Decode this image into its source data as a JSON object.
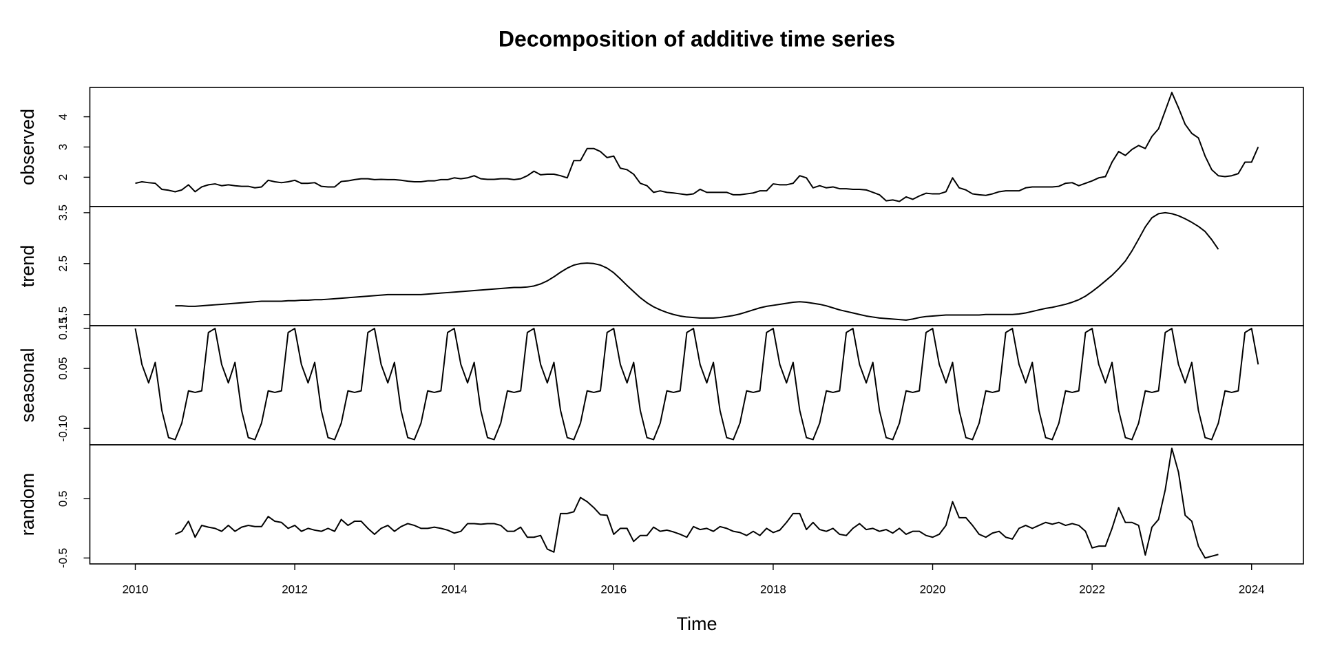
{
  "chart_data": {
    "type": "line",
    "title": "Decomposition of additive time series",
    "xlabel": "Time",
    "xlim": [
      2009.43,
      2024.65
    ],
    "xticks": [
      2010,
      2012,
      2014,
      2016,
      2018,
      2020,
      2022,
      2024
    ],
    "color": "#000000",
    "x": [
      2010,
      2010.083,
      2010.167,
      2010.25,
      2010.333,
      2010.417,
      2010.5,
      2010.583,
      2010.667,
      2010.75,
      2010.833,
      2010.917,
      2011,
      2011.083,
      2011.167,
      2011.25,
      2011.333,
      2011.417,
      2011.5,
      2011.583,
      2011.667,
      2011.75,
      2011.833,
      2011.917,
      2012,
      2012.083,
      2012.167,
      2012.25,
      2012.333,
      2012.417,
      2012.5,
      2012.583,
      2012.667,
      2012.75,
      2012.833,
      2012.917,
      2013,
      2013.083,
      2013.167,
      2013.25,
      2013.333,
      2013.417,
      2013.5,
      2013.583,
      2013.667,
      2013.75,
      2013.833,
      2013.917,
      2014,
      2014.083,
      2014.167,
      2014.25,
      2014.333,
      2014.417,
      2014.5,
      2014.583,
      2014.667,
      2014.75,
      2014.833,
      2014.917,
      2015,
      2015.083,
      2015.167,
      2015.25,
      2015.333,
      2015.417,
      2015.5,
      2015.583,
      2015.667,
      2015.75,
      2015.833,
      2015.917,
      2016,
      2016.083,
      2016.167,
      2016.25,
      2016.333,
      2016.417,
      2016.5,
      2016.583,
      2016.667,
      2016.75,
      2016.833,
      2016.917,
      2017,
      2017.083,
      2017.167,
      2017.25,
      2017.333,
      2017.417,
      2017.5,
      2017.583,
      2017.667,
      2017.75,
      2017.833,
      2017.917,
      2018,
      2018.083,
      2018.167,
      2018.25,
      2018.333,
      2018.417,
      2018.5,
      2018.583,
      2018.667,
      2018.75,
      2018.833,
      2018.917,
      2019,
      2019.083,
      2019.167,
      2019.25,
      2019.333,
      2019.417,
      2019.5,
      2019.583,
      2019.667,
      2019.75,
      2019.833,
      2019.917,
      2020,
      2020.083,
      2020.167,
      2020.25,
      2020.333,
      2020.417,
      2020.5,
      2020.583,
      2020.667,
      2020.75,
      2020.833,
      2020.917,
      2021,
      2021.083,
      2021.167,
      2021.25,
      2021.333,
      2021.417,
      2021.5,
      2021.583,
      2021.667,
      2021.75,
      2021.833,
      2021.917,
      2022,
      2022.083,
      2022.167,
      2022.25,
      2022.333,
      2022.417,
      2022.5,
      2022.583,
      2022.667,
      2022.75,
      2022.833,
      2022.917,
      2023,
      2023.083,
      2023.167,
      2023.25,
      2023.333,
      2023.417,
      2023.5,
      2023.583,
      2023.667,
      2023.75,
      2023.833,
      2023.917,
      2024,
      2024.083
    ],
    "panels": [
      {
        "ylabel": "observed",
        "ylim": [
          1.03,
          4.97
        ],
        "yticks": [
          2,
          3,
          4
        ],
        "values": [
          1.8,
          1.85,
          1.82,
          1.8,
          1.6,
          1.57,
          1.52,
          1.58,
          1.75,
          1.52,
          1.68,
          1.75,
          1.78,
          1.72,
          1.75,
          1.72,
          1.7,
          1.7,
          1.65,
          1.68,
          1.9,
          1.85,
          1.82,
          1.85,
          1.9,
          1.8,
          1.8,
          1.82,
          1.7,
          1.68,
          1.68,
          1.86,
          1.88,
          1.92,
          1.95,
          1.95,
          1.92,
          1.93,
          1.92,
          1.92,
          1.9,
          1.87,
          1.85,
          1.85,
          1.88,
          1.88,
          1.92,
          1.92,
          1.98,
          1.95,
          1.98,
          2.05,
          1.95,
          1.93,
          1.93,
          1.95,
          1.95,
          1.92,
          1.95,
          2.05,
          2.2,
          2.08,
          2.1,
          2.1,
          2.05,
          1.98,
          2.55,
          2.55,
          2.95,
          2.95,
          2.85,
          2.65,
          2.7,
          2.3,
          2.25,
          2.1,
          1.8,
          1.72,
          1.5,
          1.55,
          1.5,
          1.48,
          1.45,
          1.42,
          1.45,
          1.6,
          1.5,
          1.5,
          1.5,
          1.5,
          1.42,
          1.42,
          1.45,
          1.48,
          1.55,
          1.55,
          1.78,
          1.75,
          1.75,
          1.8,
          2.05,
          1.98,
          1.65,
          1.72,
          1.65,
          1.68,
          1.62,
          1.62,
          1.6,
          1.6,
          1.58,
          1.5,
          1.42,
          1.22,
          1.25,
          1.2,
          1.35,
          1.27,
          1.38,
          1.47,
          1.45,
          1.45,
          1.52,
          1.98,
          1.65,
          1.58,
          1.45,
          1.42,
          1.4,
          1.45,
          1.52,
          1.55,
          1.55,
          1.55,
          1.65,
          1.68,
          1.68,
          1.68,
          1.68,
          1.7,
          1.8,
          1.82,
          1.72,
          1.8,
          1.88,
          1.98,
          2.02,
          2.5,
          2.85,
          2.72,
          2.92,
          3.05,
          2.95,
          3.35,
          3.6,
          4.2,
          4.8,
          4.3,
          3.75,
          3.45,
          3.3,
          2.7,
          2.25,
          2.05,
          2.02,
          2.05,
          2.12,
          2.5,
          2.5,
          3.0
        ]
      },
      {
        "ylabel": "trend",
        "ylim": [
          1.28,
          3.62
        ],
        "yticks": [
          1.5,
          2.5,
          3.5
        ],
        "values": [
          null,
          null,
          null,
          null,
          null,
          null,
          1.67,
          1.67,
          1.66,
          1.66,
          1.67,
          1.68,
          1.69,
          1.7,
          1.71,
          1.72,
          1.73,
          1.74,
          1.75,
          1.76,
          1.76,
          1.76,
          1.76,
          1.77,
          1.77,
          1.78,
          1.78,
          1.79,
          1.79,
          1.8,
          1.81,
          1.82,
          1.83,
          1.84,
          1.85,
          1.86,
          1.87,
          1.88,
          1.89,
          1.89,
          1.89,
          1.89,
          1.89,
          1.89,
          1.9,
          1.91,
          1.92,
          1.93,
          1.94,
          1.95,
          1.96,
          1.97,
          1.98,
          1.99,
          2.0,
          2.01,
          2.02,
          2.03,
          2.03,
          2.04,
          2.06,
          2.1,
          2.16,
          2.24,
          2.33,
          2.41,
          2.47,
          2.5,
          2.51,
          2.5,
          2.47,
          2.41,
          2.32,
          2.2,
          2.07,
          1.95,
          1.83,
          1.73,
          1.65,
          1.59,
          1.54,
          1.5,
          1.47,
          1.45,
          1.44,
          1.43,
          1.43,
          1.43,
          1.44,
          1.46,
          1.48,
          1.51,
          1.55,
          1.59,
          1.63,
          1.66,
          1.68,
          1.7,
          1.72,
          1.74,
          1.75,
          1.74,
          1.72,
          1.7,
          1.67,
          1.63,
          1.59,
          1.56,
          1.53,
          1.5,
          1.47,
          1.45,
          1.43,
          1.42,
          1.41,
          1.4,
          1.39,
          1.41,
          1.44,
          1.46,
          1.47,
          1.48,
          1.49,
          1.49,
          1.49,
          1.49,
          1.49,
          1.49,
          1.5,
          1.5,
          1.5,
          1.5,
          1.5,
          1.51,
          1.53,
          1.56,
          1.59,
          1.62,
          1.64,
          1.67,
          1.7,
          1.74,
          1.79,
          1.86,
          1.95,
          2.05,
          2.16,
          2.27,
          2.4,
          2.55,
          2.75,
          2.98,
          3.22,
          3.4,
          3.48,
          3.5,
          3.48,
          3.44,
          3.38,
          3.31,
          3.23,
          3.13,
          2.97,
          2.78,
          null,
          null,
          null,
          null,
          null,
          null
        ]
      },
      {
        "ylabel": "seasonal",
        "ylim": [
          -0.141,
          0.157
        ],
        "yticks": [
          {
            "value": -0.1,
            "label": "-0.10"
          },
          0.05,
          0.15
        ],
        "values": [
          0.15,
          0.06,
          0.014,
          0.065,
          -0.055,
          -0.123,
          -0.128,
          -0.087,
          -0.006,
          -0.01,
          -0.006,
          0.14,
          0.15,
          0.06,
          0.014,
          0.065,
          -0.055,
          -0.123,
          -0.128,
          -0.087,
          -0.006,
          -0.01,
          -0.006,
          0.14,
          0.15,
          0.06,
          0.014,
          0.065,
          -0.055,
          -0.123,
          -0.128,
          -0.087,
          -0.006,
          -0.01,
          -0.006,
          0.14,
          0.15,
          0.06,
          0.014,
          0.065,
          -0.055,
          -0.123,
          -0.128,
          -0.087,
          -0.006,
          -0.01,
          -0.006,
          0.14,
          0.15,
          0.06,
          0.014,
          0.065,
          -0.055,
          -0.123,
          -0.128,
          -0.087,
          -0.006,
          -0.01,
          -0.006,
          0.14,
          0.15,
          0.06,
          0.014,
          0.065,
          -0.055,
          -0.123,
          -0.128,
          -0.087,
          -0.006,
          -0.01,
          -0.006,
          0.14,
          0.15,
          0.06,
          0.014,
          0.065,
          -0.055,
          -0.123,
          -0.128,
          -0.087,
          -0.006,
          -0.01,
          -0.006,
          0.14,
          0.15,
          0.06,
          0.014,
          0.065,
          -0.055,
          -0.123,
          -0.128,
          -0.087,
          -0.006,
          -0.01,
          -0.006,
          0.14,
          0.15,
          0.06,
          0.014,
          0.065,
          -0.055,
          -0.123,
          -0.128,
          -0.087,
          -0.006,
          -0.01,
          -0.006,
          0.14,
          0.15,
          0.06,
          0.014,
          0.065,
          -0.055,
          -0.123,
          -0.128,
          -0.087,
          -0.006,
          -0.01,
          -0.006,
          0.14,
          0.15,
          0.06,
          0.014,
          0.065,
          -0.055,
          -0.123,
          -0.128,
          -0.087,
          -0.006,
          -0.01,
          -0.006,
          0.14,
          0.15,
          0.06,
          0.014,
          0.065,
          -0.055,
          -0.123,
          -0.128,
          -0.087,
          -0.006,
          -0.01,
          -0.006,
          0.14,
          0.15,
          0.06,
          0.014,
          0.065,
          -0.055,
          -0.123,
          -0.128,
          -0.087,
          -0.006,
          -0.01,
          -0.006,
          0.14,
          0.15,
          0.06,
          0.014,
          0.065,
          -0.055,
          -0.123,
          -0.128,
          -0.087,
          -0.006,
          -0.01,
          -0.006,
          0.14,
          0.15,
          0.06
        ]
      },
      {
        "ylabel": "random",
        "ylim": [
          -0.6,
          1.41
        ],
        "yticks": [
          -0.5,
          0.5
        ],
        "values": [
          null,
          null,
          null,
          null,
          null,
          null,
          -0.1,
          -0.05,
          0.12,
          -0.15,
          0.05,
          0.02,
          0.0,
          -0.05,
          0.05,
          -0.05,
          0.02,
          0.05,
          0.03,
          0.03,
          0.2,
          0.12,
          0.1,
          0.0,
          0.05,
          -0.05,
          0.0,
          -0.03,
          -0.05,
          0.0,
          -0.05,
          0.15,
          0.05,
          0.12,
          0.12,
          0.0,
          -0.1,
          0.0,
          0.05,
          -0.05,
          0.03,
          0.08,
          0.05,
          0.0,
          0.0,
          0.02,
          0.0,
          -0.03,
          -0.08,
          -0.05,
          0.08,
          0.08,
          0.07,
          0.08,
          0.08,
          0.05,
          -0.05,
          -0.05,
          0.02,
          -0.15,
          -0.15,
          -0.12,
          -0.35,
          -0.4,
          0.25,
          0.25,
          0.28,
          0.52,
          0.45,
          0.35,
          0.23,
          0.22,
          -0.1,
          0.0,
          0.0,
          -0.22,
          -0.12,
          -0.12,
          0.02,
          -0.05,
          -0.03,
          -0.06,
          -0.1,
          -0.15,
          0.03,
          -0.02,
          0.0,
          -0.05,
          0.03,
          0.0,
          -0.05,
          -0.07,
          -0.12,
          -0.05,
          -0.12,
          0.0,
          -0.07,
          -0.03,
          0.1,
          0.25,
          0.25,
          -0.02,
          0.1,
          -0.02,
          -0.05,
          0.0,
          -0.1,
          -0.12,
          0.0,
          0.08,
          -0.02,
          0.0,
          -0.05,
          -0.02,
          -0.08,
          0.0,
          -0.1,
          -0.05,
          -0.05,
          -0.12,
          -0.15,
          -0.1,
          0.05,
          0.45,
          0.18,
          0.18,
          0.05,
          -0.1,
          -0.15,
          -0.08,
          -0.05,
          -0.15,
          -0.18,
          0.0,
          0.05,
          0.0,
          0.05,
          0.1,
          0.07,
          0.1,
          0.05,
          0.08,
          0.05,
          -0.05,
          -0.33,
          -0.3,
          -0.3,
          0.0,
          0.35,
          0.1,
          0.1,
          0.05,
          -0.45,
          0.02,
          0.15,
          0.65,
          1.35,
          0.95,
          0.22,
          0.12,
          -0.3,
          -0.5,
          -0.47,
          -0.44,
          null,
          null,
          null,
          null,
          null,
          null
        ]
      }
    ]
  }
}
